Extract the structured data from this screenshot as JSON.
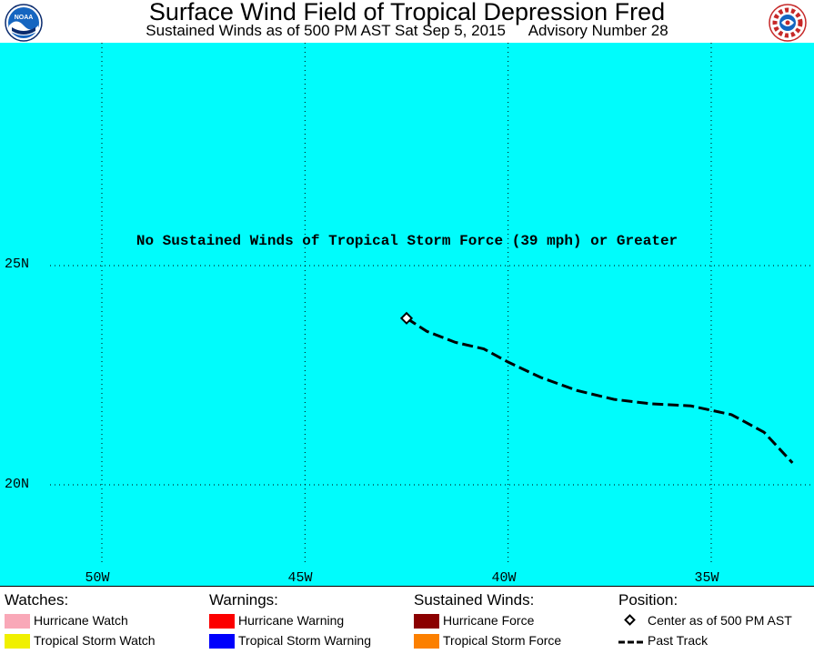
{
  "header": {
    "title": "Surface Wind Field of Tropical Depression Fred",
    "subtitle_left": "Sustained Winds as of 500 PM AST Sat Sep 5, 2015",
    "subtitle_right": "Advisory Number 28",
    "logo_left_text": "NOAA",
    "logo_right_text": "NATIONAL WEATHER SERVICE"
  },
  "map": {
    "message": "No Sustained Winds of Tropical Storm Force (39 mph) or Greater",
    "background_color": "#00fcfc",
    "lat_labels": [
      "25N",
      "20N"
    ],
    "lon_labels": [
      "50W",
      "45W",
      "40W",
      "35W"
    ],
    "center": {
      "lat": 23.8,
      "lon": -42.5
    },
    "past_track": [
      {
        "lat": 23.8,
        "lon": -42.5
      },
      {
        "lat": 23.5,
        "lon": -42.0
      },
      {
        "lat": 23.25,
        "lon": -41.3
      },
      {
        "lat": 23.1,
        "lon": -40.6
      },
      {
        "lat": 22.8,
        "lon": -40.0
      },
      {
        "lat": 22.45,
        "lon": -39.2
      },
      {
        "lat": 22.15,
        "lon": -38.3
      },
      {
        "lat": 21.95,
        "lon": -37.4
      },
      {
        "lat": 21.85,
        "lon": -36.5
      },
      {
        "lat": 21.8,
        "lon": -35.5
      },
      {
        "lat": 21.6,
        "lon": -34.5
      },
      {
        "lat": 21.2,
        "lon": -33.7
      },
      {
        "lat": 20.5,
        "lon": -33.0
      }
    ]
  },
  "legend": {
    "watches": {
      "heading": "Watches:",
      "items": [
        {
          "label": "Hurricane Watch",
          "color": "#f9a8b8"
        },
        {
          "label": "Tropical Storm Watch",
          "color": "#f0f000"
        }
      ]
    },
    "warnings": {
      "heading": "Warnings:",
      "items": [
        {
          "label": "Hurricane Warning",
          "color": "#fc0000"
        },
        {
          "label": "Tropical Storm Warning",
          "color": "#0000fc"
        }
      ]
    },
    "winds": {
      "heading": "Sustained Winds:",
      "items": [
        {
          "label": "Hurricane Force",
          "color": "#8b0000"
        },
        {
          "label": "Tropical Storm Force",
          "color": "#fc8000"
        }
      ]
    },
    "position": {
      "heading": "Position:",
      "center_label": "Center as of 500 PM AST",
      "track_label": "Past Track"
    }
  }
}
